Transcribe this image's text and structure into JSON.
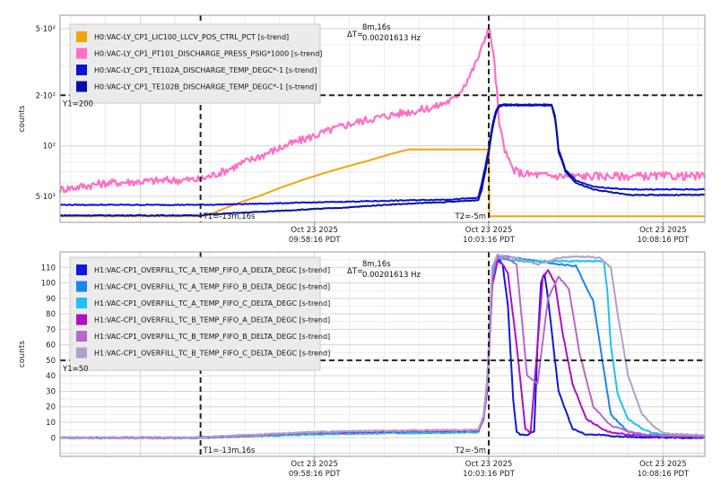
{
  "chart_data": [
    {
      "type": "line",
      "ylabel": "counts",
      "yscale": "log",
      "ylim": [
        35,
        600
      ],
      "yticks": [
        {
          "value": 50,
          "label": "5·10¹"
        },
        {
          "value": 100,
          "label": "10²"
        },
        {
          "value": 200,
          "label": "2·10²"
        },
        {
          "value": 500,
          "label": "5·10²"
        }
      ],
      "xlim": [
        -17.3,
        1.2
      ],
      "xticks": [
        {
          "value": -10,
          "line1": "Oct 23 2025",
          "line2": "09:58:16 PDT"
        },
        {
          "value": -5,
          "line1": "Oct 23 2025",
          "line2": "10:03:16 PDT"
        },
        {
          "value": 0,
          "line1": "Oct 23 2025",
          "line2": "10:08:16 PDT"
        }
      ],
      "grid": true,
      "legend_position": "top-left",
      "cursors": {
        "t1": {
          "x": -13.27,
          "label": "T1=-13m,16s"
        },
        "t2": {
          "x": -5,
          "label": "T2=-5m"
        },
        "y1": {
          "y": 200,
          "label": "Y1=200"
        },
        "delta": {
          "prefix": "ΔT=",
          "line1": "8m,16s",
          "line2": "0.00201613 Hz"
        }
      },
      "series": [
        {
          "name": "H0:VAC-LY_CP1_LIC100_LLCV_POS_CTRL_PCT [s-trend]",
          "color": "#f5a30a",
          "x": [
            -17.3,
            -13.3,
            -13.0,
            -12.5,
            -12.0,
            -11.5,
            -11.0,
            -10.5,
            -10.0,
            -9.5,
            -9.0,
            -8.5,
            -8.0,
            -7.5,
            -7.3,
            -7.0,
            -6.5,
            -6.0,
            -5.5,
            -5.05,
            -5.0,
            -4.98,
            1.2
          ],
          "y": [
            38,
            38,
            39,
            43,
            47,
            51,
            56,
            61,
            66,
            71,
            76,
            81,
            87,
            93,
            95,
            95,
            95,
            95,
            95,
            95,
            95,
            38,
            38
          ]
        },
        {
          "name": "H0:VAC-LY_CP1_PT101_DISCHARGE_PRESS_PSIG*1000 [s-trend]",
          "color": "#ff6ec4",
          "x": [
            -17.3,
            -16.0,
            -14.5,
            -13.3,
            -13.0,
            -12.5,
            -12.0,
            -11.5,
            -11.0,
            -10.5,
            -10.0,
            -9.5,
            -9.0,
            -8.5,
            -8.0,
            -7.5,
            -7.0,
            -6.5,
            -6.0,
            -5.8,
            -5.6,
            -5.4,
            -5.2,
            -5.1,
            -5.0,
            -4.9,
            -4.8,
            -4.7,
            -4.5,
            -4.3,
            -4.0,
            -3.5,
            -3.0,
            -2.0,
            -1.0,
            0.0,
            1.2
          ],
          "y": [
            55,
            60,
            62,
            63,
            66,
            72,
            80,
            88,
            97,
            106,
            115,
            125,
            135,
            143,
            150,
            157,
            163,
            172,
            190,
            215,
            250,
            300,
            380,
            450,
            500,
            400,
            250,
            130,
            88,
            72,
            68,
            67,
            66,
            66,
            66,
            66,
            66
          ]
        },
        {
          "name": "H0:VAC-LY_CP1_TE102A_DISCHARGE_TEMP_DEGC*-1 [s-trend]",
          "color": "#0c12d8",
          "x": [
            -17.3,
            -13.3,
            -13.0,
            -12.0,
            -11.0,
            -10.0,
            -9.0,
            -8.0,
            -7.0,
            -6.0,
            -5.3,
            -5.2,
            -5.1,
            -5.0,
            -4.9,
            -4.8,
            -4.7,
            -4.6,
            -4.5,
            -4.0,
            -3.5,
            -3.2,
            -3.1,
            -3.0,
            -2.8,
            -2.5,
            -2.0,
            -1.5,
            -1.0,
            0.0,
            1.2
          ],
          "y": [
            44.5,
            44.5,
            44.6,
            45,
            45.5,
            46,
            46.5,
            47,
            47.5,
            48,
            49,
            60,
            75,
            95,
            130,
            160,
            175,
            176,
            176,
            176,
            176,
            176,
            150,
            95,
            72,
            62,
            57,
            56,
            55,
            55,
            55
          ]
        },
        {
          "name": "H0:VAC-LY_CP1_TE102B_DISCHARGE_TEMP_DEGC*-1 [s-trend]",
          "color": "#0610a8",
          "x": [
            -17.3,
            -13.3,
            -13.0,
            -12.0,
            -11.0,
            -10.0,
            -9.0,
            -8.0,
            -7.0,
            -6.0,
            -5.3,
            -5.2,
            -5.1,
            -5.0,
            -4.9,
            -4.8,
            -4.7,
            -4.6,
            -4.5,
            -4.0,
            -3.5,
            -3.2,
            -3.1,
            -3.0,
            -2.8,
            -2.5,
            -2.0,
            -1.5,
            -1.0,
            0.0,
            1.2
          ],
          "y": [
            38.5,
            38.5,
            39,
            40,
            41,
            42,
            43,
            44.5,
            45.5,
            46.5,
            47.5,
            55,
            70,
            90,
            125,
            155,
            172,
            174,
            174,
            174,
            174,
            174,
            145,
            92,
            70,
            60,
            55,
            53,
            51,
            51,
            51
          ]
        }
      ]
    },
    {
      "type": "line",
      "ylabel": "counts",
      "ylim": [
        -12,
        120
      ],
      "yticks": [
        0,
        10,
        20,
        30,
        40,
        50,
        60,
        70,
        80,
        90,
        100,
        110
      ],
      "xlim": [
        -17.3,
        1.2
      ],
      "xticks": [
        {
          "value": -10,
          "line1": "Oct 23 2025",
          "line2": "09:58:16 PDT"
        },
        {
          "value": -5,
          "line1": "Oct 23 2025",
          "line2": "10:03:16 PDT"
        },
        {
          "value": 0,
          "line1": "Oct 23 2025",
          "line2": "10:08:16 PDT"
        }
      ],
      "grid": true,
      "legend_position": "top-left",
      "cursors": {
        "t1": {
          "x": -13.27,
          "label": "T1=-13m,16s"
        },
        "t2": {
          "x": -5,
          "label": "T2=-5m"
        },
        "y1": {
          "y": 50,
          "label": "Y1=50"
        },
        "delta": {
          "prefix": "ΔT=",
          "line1": "8m,16s",
          "line2": "0.00201613 Hz"
        }
      },
      "series": [
        {
          "name": "H1:VAC-CP1_OVERFILL_TC_A_TEMP_FIFO_A_DELTA_DEGC [s-trend]",
          "color": "#1018e0",
          "x": [
            -17.3,
            -13.5,
            -13.0,
            -12.0,
            -11.0,
            -10.0,
            -9.0,
            -8.0,
            -7.0,
            -6.0,
            -5.3,
            -5.15,
            -5.05,
            -4.9,
            -4.75,
            -4.6,
            -4.45,
            -4.3,
            -4.2,
            -4.1,
            -3.9,
            -3.7,
            -3.6,
            -3.5,
            -3.4,
            -3.3,
            -3.0,
            -2.6,
            -2.2,
            -1.8,
            -1.4,
            -1.0,
            0.0,
            1.2
          ],
          "y": [
            0,
            0,
            0.5,
            1.2,
            2,
            2.8,
            3.2,
            3.5,
            3.6,
            3.8,
            4,
            14,
            35,
            100,
            116,
            112,
            85,
            25,
            4,
            2,
            2,
            4,
            60,
            100,
            106,
            90,
            30,
            6,
            2,
            2,
            1,
            0.5,
            0,
            0
          ]
        },
        {
          "name": "H1:VAC-CP1_OVERFILL_TC_A_TEMP_FIFO_B_DELTA_DEGC [s-trend]",
          "color": "#1a86f0",
          "x": [
            -17.3,
            -13.5,
            -13.0,
            -12.0,
            -11.0,
            -10.0,
            -9.0,
            -8.0,
            -7.0,
            -6.0,
            -5.3,
            -5.15,
            -5.05,
            -4.9,
            -4.75,
            -4.5,
            -4.2,
            -3.9,
            -3.6,
            -3.3,
            -3.0,
            -2.5,
            -2.0,
            -1.5,
            -1.0,
            -0.5,
            0.0,
            1.2
          ],
          "y": [
            0,
            0,
            0.3,
            1,
            1.6,
            2.2,
            2.6,
            3,
            3.2,
            3.4,
            3.6,
            14,
            36,
            106,
            118,
            117,
            116,
            115,
            114,
            113,
            112,
            111,
            88,
            15,
            4,
            2,
            1,
            0.5
          ]
        },
        {
          "name": "H1:VAC-CP1_OVERFILL_TC_A_TEMP_FIFO_C_DELTA_DEGC [s-trend]",
          "color": "#1ec0f5",
          "x": [
            -17.3,
            -13.5,
            -13.0,
            -12.0,
            -11.0,
            -10.0,
            -9.0,
            -8.0,
            -7.0,
            -6.0,
            -5.3,
            -5.15,
            -5.05,
            -4.9,
            -4.75,
            -4.5,
            -4.0,
            -3.5,
            -3.0,
            -2.5,
            -2.0,
            -1.7,
            -1.6,
            -1.5,
            -1.3,
            -1.0,
            -0.6,
            -0.3,
            0.0,
            1.2
          ],
          "y": [
            0,
            0,
            0.3,
            1,
            1.6,
            2.2,
            2.6,
            3,
            3.2,
            3.4,
            3.6,
            12,
            30,
            104,
            116,
            115,
            114,
            114,
            114,
            114,
            114,
            114,
            95,
            60,
            28,
            12,
            6,
            3,
            2,
            1
          ]
        },
        {
          "name": "H1:VAC-CP1_OVERFILL_TC_B_TEMP_FIFO_A_DELTA_DEGC [s-trend]",
          "color": "#b010c0",
          "x": [
            -17.3,
            -13.5,
            -13.0,
            -12.0,
            -11.0,
            -10.0,
            -9.0,
            -8.0,
            -7.0,
            -6.0,
            -5.3,
            -5.15,
            -5.05,
            -4.9,
            -4.75,
            -4.6,
            -4.45,
            -4.2,
            -3.95,
            -3.8,
            -3.6,
            -3.45,
            -3.3,
            -3.1,
            -2.9,
            -2.6,
            -2.2,
            -1.6,
            -1.0,
            0.0,
            1.2
          ],
          "y": [
            0,
            0,
            0.4,
            1.4,
            2.4,
            3.2,
            3.6,
            4,
            4.2,
            4.3,
            4.5,
            12,
            30,
            98,
            114,
            112,
            106,
            60,
            6,
            3,
            60,
            104,
            108,
            100,
            70,
            35,
            12,
            4,
            2,
            1,
            0.5
          ]
        },
        {
          "name": "H1:VAC-CP1_OVERFILL_TC_B_TEMP_FIFO_B_DELTA_DEGC [s-trend]",
          "color": "#b868c8",
          "x": [
            -17.3,
            -13.5,
            -13.0,
            -12.0,
            -11.0,
            -10.0,
            -9.0,
            -8.0,
            -7.0,
            -6.0,
            -5.3,
            -5.15,
            -5.05,
            -4.9,
            -4.75,
            -4.5,
            -4.2,
            -3.9,
            -3.6,
            -3.3,
            -3.0,
            -2.7,
            -2.4,
            -2.0,
            -1.5,
            -1.0,
            -0.5,
            0.0,
            1.2
          ],
          "y": [
            0,
            0,
            0.5,
            1.5,
            2.6,
            3.5,
            4,
            4.4,
            4.6,
            4.8,
            5,
            14,
            34,
            108,
            117,
            116,
            112,
            40,
            35,
            90,
            104,
            96,
            55,
            20,
            8,
            4,
            2,
            1.5,
            1
          ]
        },
        {
          "name": "H1:VAC-CP1_OVERFILL_TC_B_TEMP_FIFO_C_DELTA_DEGC [s-trend]",
          "color": "#b0a0c8",
          "x": [
            -17.3,
            -13.5,
            -13.0,
            -12.0,
            -11.0,
            -10.0,
            -9.0,
            -8.0,
            -7.0,
            -6.0,
            -5.3,
            -5.15,
            -5.05,
            -4.9,
            -4.75,
            -4.5,
            -4.2,
            -3.9,
            -3.6,
            -3.3,
            -3.0,
            -2.6,
            -2.2,
            -1.8,
            -1.5,
            -1.3,
            -1.0,
            -0.6,
            -0.2,
            0.0,
            1.2
          ],
          "y": [
            0,
            0,
            0.6,
            1.7,
            2.8,
            3.7,
            4.2,
            4.6,
            4.8,
            5,
            5.2,
            14,
            34,
            110,
            118,
            117,
            116,
            114,
            112,
            114,
            116,
            117,
            117,
            116,
            110,
            80,
            40,
            15,
            6,
            3,
            1.5
          ]
        }
      ]
    }
  ]
}
